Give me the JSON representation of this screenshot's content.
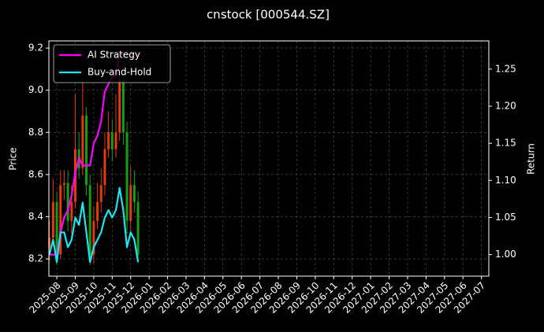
{
  "chart_data": {
    "type": "candlestick",
    "title": "cnstock [000544.SZ]",
    "ylabel": "Price",
    "y2label": "Return",
    "x": [
      -0.4,
      -0.2,
      0,
      0.2,
      0.4,
      0.6,
      0.8,
      1.0,
      1.2,
      1.4,
      1.6,
      1.8,
      2.0,
      2.2,
      2.4,
      2.6,
      2.8,
      3.0,
      3.2,
      3.4,
      3.6,
      3.8,
      4.0,
      4.2,
      4.4
    ],
    "open": [
      8.25,
      8.3,
      8.47,
      8.22,
      8.55,
      8.56,
      8.38,
      8.47,
      8.72,
      8.63,
      8.88,
      8.55,
      8.22,
      8.38,
      8.47,
      8.55,
      8.72,
      8.8,
      8.72,
      8.8,
      9.05,
      8.8,
      8.38,
      8.55,
      8.47
    ],
    "high": [
      8.38,
      8.58,
      8.52,
      8.62,
      8.62,
      8.62,
      8.55,
      8.98,
      8.8,
      9.05,
      8.92,
      8.6,
      8.45,
      8.56,
      8.63,
      8.8,
      8.9,
      8.86,
      8.98,
      9.12,
      9.1,
      8.85,
      8.64,
      8.62,
      8.52
    ],
    "low": [
      8.19,
      8.26,
      8.17,
      8.2,
      8.48,
      8.33,
      8.32,
      8.44,
      8.58,
      8.6,
      8.5,
      8.17,
      8.18,
      8.34,
      8.42,
      8.5,
      8.68,
      8.66,
      8.68,
      8.76,
      8.74,
      8.32,
      8.33,
      8.42,
      8.18
    ],
    "close": [
      8.3,
      8.47,
      8.22,
      8.55,
      8.56,
      8.38,
      8.47,
      8.72,
      8.63,
      8.88,
      8.55,
      8.22,
      8.38,
      8.47,
      8.55,
      8.72,
      8.8,
      8.72,
      8.8,
      9.05,
      8.8,
      8.38,
      8.55,
      8.47,
      8.22
    ],
    "up_color": "#e8380e",
    "down_color": "#14a014",
    "series": [
      {
        "name": "AI Strategy",
        "color": "#ff00ff",
        "axis": "y2",
        "values": [
          1.0,
          1.0,
          1.0,
          1.03,
          1.05,
          1.06,
          1.08,
          1.11,
          1.13,
          1.12,
          1.12,
          1.12,
          1.15,
          1.16,
          1.18,
          1.22,
          1.23,
          1.24,
          1.24,
          1.27,
          1.27,
          1.27,
          1.27,
          1.27,
          1.27
        ]
      },
      {
        "name": "Buy-and-Hold",
        "color": "#19e6f0",
        "axis": "y2",
        "values": [
          1.0,
          1.02,
          0.99,
          1.03,
          1.03,
          1.01,
          1.02,
          1.05,
          1.04,
          1.07,
          1.03,
          0.99,
          1.01,
          1.02,
          1.03,
          1.05,
          1.06,
          1.05,
          1.06,
          1.09,
          1.06,
          1.01,
          1.03,
          1.02,
          0.99
        ]
      }
    ],
    "xlim": [
      -0.43,
      23.4
    ],
    "xticks": [
      {
        "value": 0,
        "label": "2025-08"
      },
      {
        "value": 1,
        "label": "2025-09"
      },
      {
        "value": 2,
        "label": "2025-10"
      },
      {
        "value": 3,
        "label": "2025-11"
      },
      {
        "value": 4,
        "label": "2025-12"
      },
      {
        "value": 5,
        "label": "2026-01"
      },
      {
        "value": 6,
        "label": "2026-02"
      },
      {
        "value": 7,
        "label": "2026-03"
      },
      {
        "value": 8,
        "label": "2026-04"
      },
      {
        "value": 9,
        "label": "2026-05"
      },
      {
        "value": 10,
        "label": "2026-06"
      },
      {
        "value": 11,
        "label": "2026-07"
      },
      {
        "value": 12,
        "label": "2026-08"
      },
      {
        "value": 13,
        "label": "2026-09"
      },
      {
        "value": 14,
        "label": "2026-10"
      },
      {
        "value": 15,
        "label": "2026-11"
      },
      {
        "value": 16,
        "label": "2026-12"
      },
      {
        "value": 17,
        "label": "2027-01"
      },
      {
        "value": 18,
        "label": "2027-02"
      },
      {
        "value": 19,
        "label": "2027-03"
      },
      {
        "value": 20,
        "label": "2027-04"
      },
      {
        "value": 21,
        "label": "2027-05"
      },
      {
        "value": 22,
        "label": "2027-06"
      },
      {
        "value": 23,
        "label": "2027-07"
      }
    ],
    "ylim": [
      8.118,
      9.234
    ],
    "yticks": [
      8.2,
      8.4,
      8.6,
      8.8,
      {
        "value": 9,
        "label": "9.0"
      },
      9.2
    ],
    "y2lim": [
      0.971,
      1.288
    ],
    "y2ticks": [
      {
        "value": 1,
        "label": "1.00"
      },
      1.05,
      {
        "value": 1.1,
        "label": "1.10"
      },
      1.15,
      {
        "value": 1.2,
        "label": "1.20"
      },
      1.25
    ],
    "grid": true,
    "legend": "upper left"
  }
}
